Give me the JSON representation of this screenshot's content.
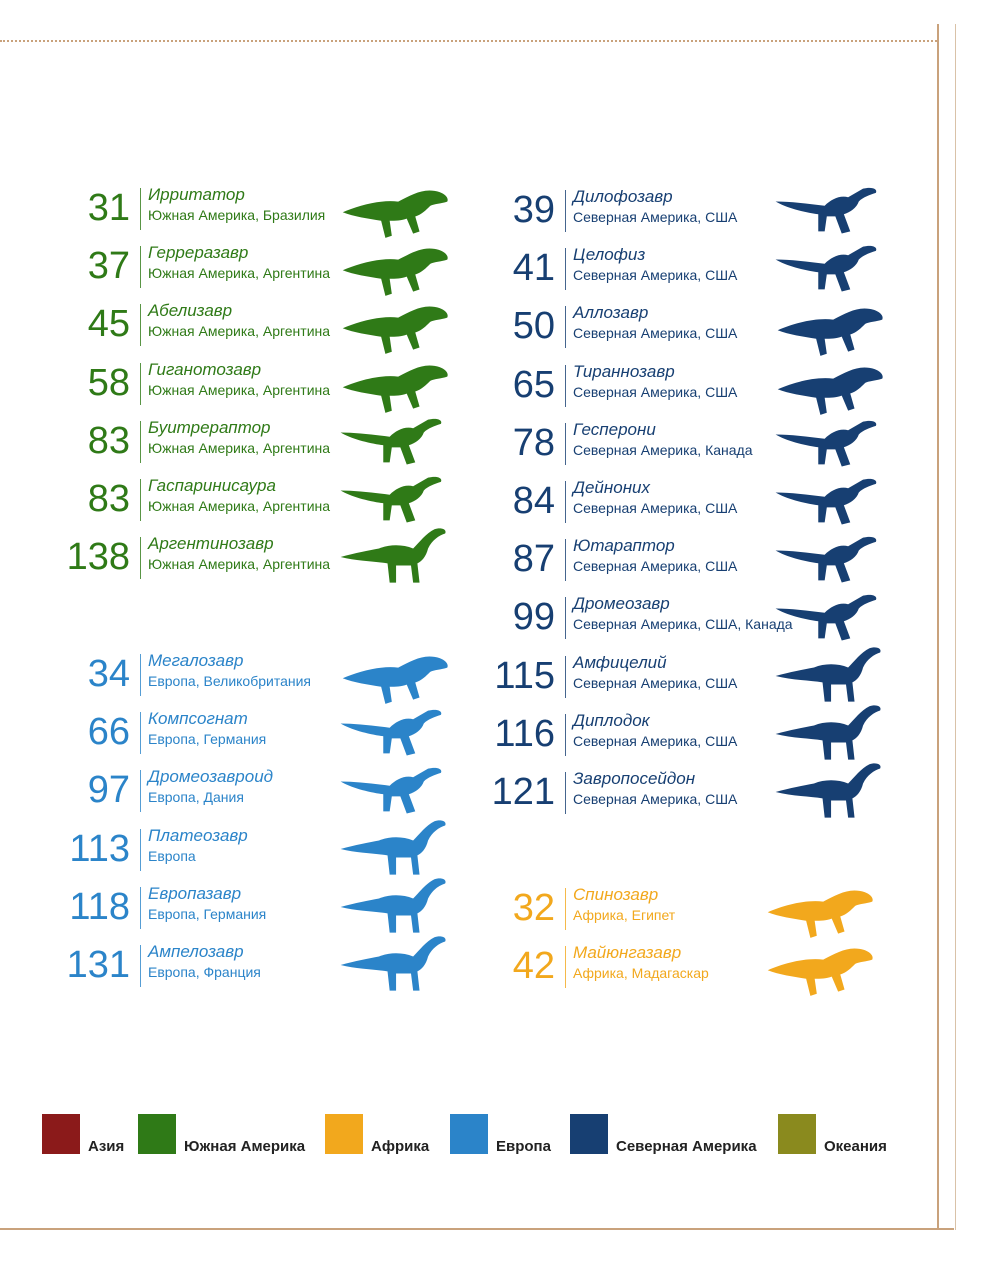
{
  "colors": {
    "asia": "#8b1a1a",
    "south_america": "#2f7a17",
    "africa": "#f2a81d",
    "europe": "#2b84c9",
    "north_america": "#173f72",
    "oceania": "#8a8a1e"
  },
  "south_america": [
    {
      "num": "31",
      "name": "Ирритатор",
      "loc": "Южная Америка, Бразилия",
      "icon": "irritator-silhouette-icon"
    },
    {
      "num": "37",
      "name": "Герреразавр",
      "loc": "Южная Америка, Аргентина",
      "icon": "herrerasaurus-silhouette-icon"
    },
    {
      "num": "45",
      "name": "Абелизавр",
      "loc": "Южная Америка, Аргентина",
      "icon": "abelisaurus-silhouette-icon"
    },
    {
      "num": "58",
      "name": "Гиганотозавр",
      "loc": "Южная Америка, Аргентина",
      "icon": "giganotosaurus-silhouette-icon"
    },
    {
      "num": "83",
      "name": "Буитрераптор",
      "loc": "Южная Америка, Аргентина",
      "icon": "buitreraptor-silhouette-icon"
    },
    {
      "num": "83",
      "name": "Гаспаринисаура",
      "loc": "Южная Америка, Аргентина",
      "icon": "gasparinisaura-silhouette-icon"
    },
    {
      "num": "138",
      "name": "Аргентинозавр",
      "loc": "Южная Америка, Аргентина",
      "icon": "argentinosaurus-silhouette-icon"
    }
  ],
  "europe": [
    {
      "num": "34",
      "name": "Мегалозавр",
      "loc": "Европа, Великобритания",
      "icon": "megalosaurus-silhouette-icon"
    },
    {
      "num": "66",
      "name": "Компсогнат",
      "loc": "Европа, Германия",
      "icon": "compsognathus-silhouette-icon"
    },
    {
      "num": "97",
      "name": "Дромеозавроид",
      "loc": "Европа, Дания",
      "icon": "dromaeosauroid-silhouette-icon"
    },
    {
      "num": "113",
      "name": "Платеозавр",
      "loc": "Европа",
      "icon": "plateosaurus-silhouette-icon"
    },
    {
      "num": "118",
      "name": "Европазавр",
      "loc": "Европа, Германия",
      "icon": "europasaurus-silhouette-icon"
    },
    {
      "num": "131",
      "name": "Ампелозавр",
      "loc": "Европа, Франция",
      "icon": "ampelosaurus-silhouette-icon"
    }
  ],
  "north_america": [
    {
      "num": "39",
      "name": "Дилофозавр",
      "loc": "Северная Америка, США",
      "icon": "dilophosaurus-silhouette-icon"
    },
    {
      "num": "41",
      "name": "Целофиз",
      "loc": "Северная Америка, США",
      "icon": "coelophysis-silhouette-icon"
    },
    {
      "num": "50",
      "name": "Аллозавр",
      "loc": "Северная Америка, США",
      "icon": "allosaurus-silhouette-icon"
    },
    {
      "num": "65",
      "name": "Тираннозавр",
      "loc": "Северная Америка, США",
      "icon": "tyrannosaurus-silhouette-icon"
    },
    {
      "num": "78",
      "name": "Гесперони",
      "loc": "Северная Америка, Канада",
      "icon": "hesperonychus-silhouette-icon"
    },
    {
      "num": "84",
      "name": "Дейноних",
      "loc": "Северная Америка, США",
      "icon": "deinonychus-silhouette-icon"
    },
    {
      "num": "87",
      "name": "Ютараптор",
      "loc": "Северная Америка, США",
      "icon": "utahraptor-silhouette-icon"
    },
    {
      "num": "99",
      "name": "Дромеозавр",
      "loc": "Северная Америка, США, Канада",
      "icon": "dromaeosaurus-silhouette-icon"
    },
    {
      "num": "115",
      "name": "Амфицелий",
      "loc": "Северная Америка, США",
      "icon": "amphicoelias-silhouette-icon"
    },
    {
      "num": "116",
      "name": "Диплодок",
      "loc": "Северная Америка, США",
      "icon": "diplodocus-silhouette-icon"
    },
    {
      "num": "121",
      "name": "Завропосейдон",
      "loc": "Северная Америка, США",
      "icon": "sauroposeidon-silhouette-icon"
    }
  ],
  "africa": [
    {
      "num": "32",
      "name": "Спинозавр",
      "loc": "Африка, Египет",
      "icon": "spinosaurus-silhouette-icon"
    },
    {
      "num": "42",
      "name": "Майюнгазавр",
      "loc": "Африка, Мадагаскар",
      "icon": "majungasaurus-silhouette-icon"
    }
  ],
  "legend": [
    {
      "label": "Азия",
      "color": "#8b1a1a"
    },
    {
      "label": "Южная Америка",
      "color": "#2f7a17"
    },
    {
      "label": "Африка",
      "color": "#f2a81d"
    },
    {
      "label": "Европа",
      "color": "#2b84c9"
    },
    {
      "label": "Северная Америка",
      "color": "#173f72"
    },
    {
      "label": "Океания",
      "color": "#8a8a1e"
    }
  ]
}
